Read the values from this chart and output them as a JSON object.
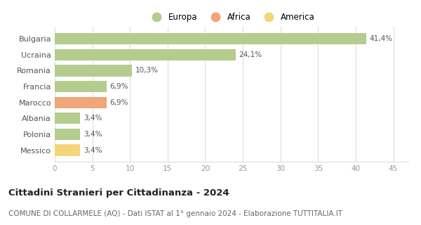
{
  "categories": [
    "Bulgaria",
    "Ucraina",
    "Romania",
    "Francia",
    "Marocco",
    "Albania",
    "Polonia",
    "Messico"
  ],
  "values": [
    41.4,
    24.1,
    10.3,
    6.9,
    6.9,
    3.4,
    3.4,
    3.4
  ],
  "labels": [
    "41,4%",
    "24,1%",
    "10,3%",
    "6,9%",
    "6,9%",
    "3,4%",
    "3,4%",
    "3,4%"
  ],
  "colors": [
    "#b5cc8e",
    "#b5cc8e",
    "#b5cc8e",
    "#b5cc8e",
    "#f0a57a",
    "#b5cc8e",
    "#b5cc8e",
    "#f5d57a"
  ],
  "legend": [
    {
      "label": "Europa",
      "color": "#b5cc8e"
    },
    {
      "label": "Africa",
      "color": "#f0a57a"
    },
    {
      "label": "America",
      "color": "#f5d57a"
    }
  ],
  "xlim": [
    0,
    47
  ],
  "xticks": [
    0,
    5,
    10,
    15,
    20,
    25,
    30,
    35,
    40,
    45
  ],
  "title": "Cittadini Stranieri per Cittadinanza - 2024",
  "subtitle": "COMUNE DI COLLARMELE (AQ) - Dati ISTAT al 1° gennaio 2024 - Elaborazione TUTTITALIA.IT",
  "title_fontsize": 9.5,
  "subtitle_fontsize": 7.5,
  "background_color": "#ffffff",
  "grid_color": "#dddddd",
  "bar_height": 0.72
}
